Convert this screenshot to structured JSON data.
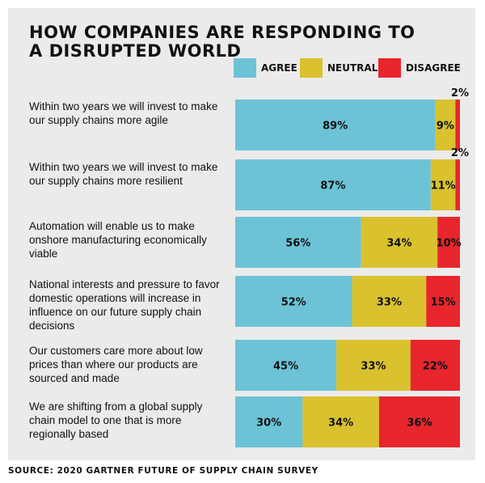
{
  "chart_data": {
    "type": "bar",
    "orientation": "horizontal",
    "stacked": true,
    "title": "HOW COMPANIES ARE RESPONDING TO A DISRUPTED WORLD",
    "legend_position": "top-right",
    "categories": [
      "Within two years we will invest to make our supply chains more agile",
      "Within two years we will invest to make our supply chains more resilient",
      "Automation will enable us to make onshore manufacturing economically viable",
      "National interests and pressure to favor domestic operations will increase in influence on our future supply chain decisions",
      "Our customers care more about low prices than where our products are sourced and made",
      "We are shifting from a global supply chain model to one that is more regionally based"
    ],
    "series": [
      {
        "name": "AGREE",
        "color": "#6cc3d6",
        "values": [
          89,
          87,
          56,
          52,
          45,
          30
        ]
      },
      {
        "name": "NEUTRAL",
        "color": "#d9c22e",
        "values": [
          9,
          11,
          34,
          33,
          33,
          34
        ]
      },
      {
        "name": "DISAGREE",
        "color": "#e8262c",
        "values": [
          2,
          2,
          10,
          15,
          22,
          36
        ]
      }
    ],
    "xlim": [
      0,
      100
    ],
    "value_suffix": "%",
    "grid": false
  },
  "source": "SOURCE: 2020 GARTNER FUTURE OF SUPPLY CHAIN SURVEY"
}
